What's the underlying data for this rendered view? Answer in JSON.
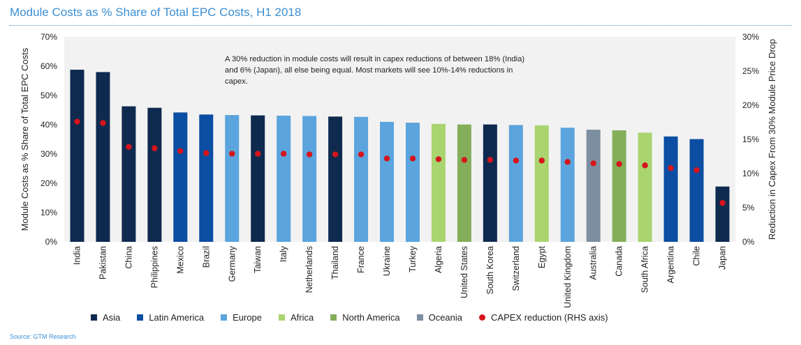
{
  "header": {
    "title": "Module Costs as % Share of Total EPC Costs, H1 2018"
  },
  "annotation": "A 30% reduction in module costs will result in capex reductions of between 18% (India) and 6% (Japan), all else being equal. Most markets will see 10%-14% reductions in capex.",
  "source": "Source: GTM Research",
  "colors": {
    "Asia": "#0f2a4f",
    "Latin America": "#0b4ea2",
    "Europe": "#5ba4dd",
    "Africa": "#a9d46f",
    "North America": "#84ae5a",
    "Oceania": "#7c8ea0",
    "capex": "#d6141c",
    "plot_bg": "#f2f2f2"
  },
  "chart_data": {
    "type": "bar",
    "title": "Module Costs as % Share of Total EPC Costs, H1 2018",
    "ylabel": "Module Costs as % Share of Total EPC Costs",
    "ylabel_right": "Reduction in Capex From 30% Module Price Drop",
    "ylim": [
      0,
      70
    ],
    "ylim_right": [
      0,
      30
    ],
    "yticks": [
      "0%",
      "10%",
      "20%",
      "30%",
      "40%",
      "50%",
      "60%",
      "70%"
    ],
    "yticks_right": [
      "0%",
      "5%",
      "10%",
      "15%",
      "20%",
      "25%",
      "30%"
    ],
    "categories": [
      "India",
      "Pakistan",
      "China",
      "Philippines",
      "Mexico",
      "Brazil",
      "Germany",
      "Taiwan",
      "Italy",
      "Netherlands",
      "Thailand",
      "France",
      "Ukraine",
      "Turkey",
      "Algeria",
      "United States",
      "South Korea",
      "Switzerland",
      "Egypt",
      "United Kingdom",
      "Australia",
      "Canada",
      "South Africa",
      "Argentina",
      "Chile",
      "Japan"
    ],
    "regions": [
      "Asia",
      "Asia",
      "Asia",
      "Asia",
      "Latin America",
      "Latin America",
      "Europe",
      "Asia",
      "Europe",
      "Europe",
      "Asia",
      "Europe",
      "Europe",
      "Europe",
      "Africa",
      "North America",
      "Asia",
      "Europe",
      "Africa",
      "Europe",
      "Oceania",
      "North America",
      "Africa",
      "Latin America",
      "Latin America",
      "Asia"
    ],
    "series": [
      {
        "name": "Module cost share",
        "axis": "left",
        "values": [
          58.8,
          58.0,
          46.3,
          45.8,
          44.2,
          43.5,
          43.3,
          43.2,
          43.1,
          43.0,
          42.8,
          42.7,
          41.0,
          40.7,
          40.3,
          40.1,
          40.1,
          39.9,
          39.8,
          39.0,
          38.3,
          38.1,
          37.3,
          36.0,
          35.1,
          18.9
        ]
      },
      {
        "name": "CAPEX reduction (RHS axis)",
        "axis": "right",
        "values": [
          17.6,
          17.4,
          13.9,
          13.7,
          13.3,
          13.0,
          12.9,
          12.9,
          12.9,
          12.8,
          12.8,
          12.8,
          12.2,
          12.2,
          12.1,
          12.0,
          12.0,
          11.9,
          11.9,
          11.7,
          11.5,
          11.4,
          11.2,
          10.8,
          10.5,
          5.7
        ]
      }
    ],
    "legend": {
      "position": "bottom",
      "items": [
        "Asia",
        "Latin America",
        "Europe",
        "Africa",
        "North America",
        "Oceania",
        "CAPEX reduction (RHS axis)"
      ]
    },
    "grid": false
  }
}
